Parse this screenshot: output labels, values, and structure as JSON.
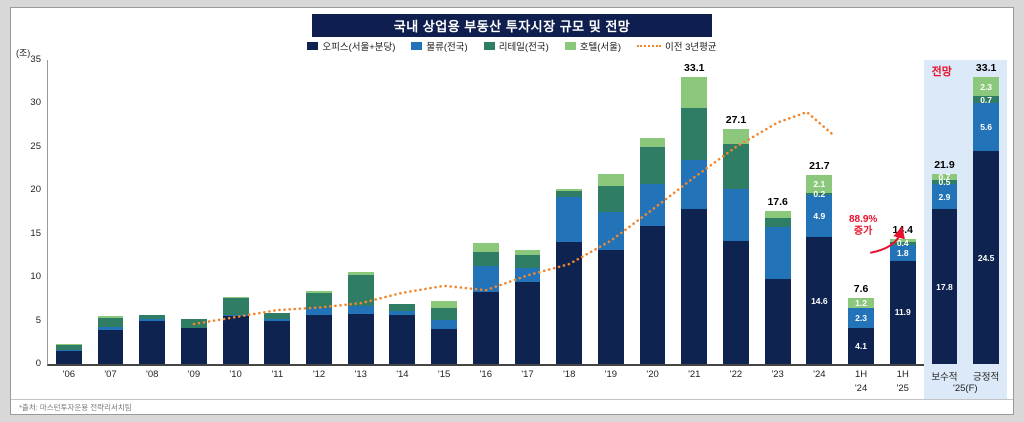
{
  "source": {
    "text": "*출처: 마스턴투자운용 전략리서치팀"
  },
  "chart_data": {
    "type": "stacked-bar+line",
    "title": "국내 상업용 부동산 투자시장 규모 및 전망",
    "unit": "(조)",
    "ylim": [
      0,
      35
    ],
    "yticks": [
      0,
      5,
      10,
      15,
      20,
      25,
      30,
      35
    ],
    "grid": "off",
    "legend_position": "top",
    "series": [
      {
        "key": "office",
        "name": "오피스(서울+분당)",
        "color": "#0f2350"
      },
      {
        "key": "logistics",
        "name": "물류(전국)",
        "color": "#2273b8"
      },
      {
        "key": "retail",
        "name": "리테일(전국)",
        "color": "#2e7d64"
      },
      {
        "key": "hotel",
        "name": "호텔(서울)",
        "color": "#8cc87c"
      }
    ],
    "line_series": {
      "name": "이전 3년평균",
      "color": "#f2862d",
      "points": [
        [
          3,
          4.6
        ],
        [
          4,
          5.4
        ],
        [
          5,
          6.2
        ],
        [
          6,
          6.5
        ],
        [
          7,
          7.0
        ],
        [
          8,
          8.2
        ],
        [
          9,
          9.0
        ],
        [
          10,
          8.5
        ],
        [
          11,
          10.2
        ],
        [
          12,
          11.5
        ],
        [
          13,
          14.2
        ],
        [
          14,
          17.8
        ],
        [
          15,
          21.5
        ],
        [
          16,
          25.0
        ],
        [
          17,
          27.8
        ],
        [
          17.7,
          29.0
        ],
        [
          18.3,
          26.5
        ]
      ]
    },
    "bars": [
      {
        "label": "'06",
        "values": [
          1.5,
          0.1,
          0.6,
          0.1
        ],
        "value_labels": null,
        "total": null
      },
      {
        "label": "'07",
        "values": [
          3.9,
          0.4,
          1.0,
          0.2
        ],
        "value_labels": null,
        "total": null
      },
      {
        "label": "'08",
        "values": [
          5.0,
          0.2,
          0.5,
          0.0
        ],
        "value_labels": null,
        "total": null
      },
      {
        "label": "'09",
        "values": [
          4.2,
          0.0,
          1.0,
          0.0
        ],
        "value_labels": null,
        "total": null
      },
      {
        "label": "'10",
        "values": [
          5.5,
          0.1,
          2.0,
          0.1
        ],
        "value_labels": null,
        "total": null
      },
      {
        "label": "'11",
        "values": [
          4.9,
          0.3,
          0.7,
          0.0
        ],
        "value_labels": null,
        "total": null
      },
      {
        "label": "'12",
        "values": [
          5.6,
          0.8,
          1.8,
          0.2
        ],
        "value_labels": null,
        "total": null
      },
      {
        "label": "'13",
        "values": [
          5.8,
          0.9,
          3.5,
          0.4
        ],
        "value_labels": null,
        "total": null
      },
      {
        "label": "'14",
        "values": [
          5.6,
          0.5,
          0.8,
          0.0
        ],
        "value_labels": null,
        "total": null
      },
      {
        "label": "'15",
        "values": [
          4.0,
          1.1,
          1.3,
          0.8
        ],
        "value_labels": null,
        "total": null
      },
      {
        "label": "'16",
        "values": [
          8.3,
          3.0,
          1.6,
          1.0
        ],
        "value_labels": null,
        "total": null
      },
      {
        "label": "'17",
        "values": [
          9.4,
          1.6,
          1.6,
          0.5
        ],
        "value_labels": null,
        "total": null
      },
      {
        "label": "'18",
        "values": [
          14.0,
          5.2,
          0.7,
          0.2
        ],
        "value_labels": null,
        "total": null
      },
      {
        "label": "'19",
        "values": [
          13.1,
          4.4,
          3.0,
          1.4
        ],
        "value_labels": null,
        "total": null
      },
      {
        "label": "'20",
        "values": [
          15.9,
          4.8,
          4.3,
          1.0
        ],
        "value_labels": null,
        "total": null
      },
      {
        "label": "'21",
        "values": [
          17.8,
          5.7,
          6.0,
          3.6
        ],
        "value_labels": null,
        "total": "33.1"
      },
      {
        "label": "'22",
        "values": [
          14.2,
          6.0,
          5.1,
          1.8
        ],
        "value_labels": null,
        "total": "27.1"
      },
      {
        "label": "'23",
        "values": [
          9.8,
          6.0,
          1.0,
          0.8
        ],
        "value_labels": null,
        "total": "17.6"
      },
      {
        "label": "'24",
        "values": [
          14.6,
          4.9,
          0.2,
          2.1
        ],
        "value_labels": [
          "14.6",
          "4.9",
          "0.2",
          "2.1"
        ],
        "total": "21.7"
      },
      {
        "label": "1H",
        "sublabel": "'24",
        "values": [
          4.1,
          2.3,
          0.0,
          1.2
        ],
        "value_labels": [
          "4.1",
          "2.3",
          null,
          "1.2"
        ],
        "total": "7.6"
      },
      {
        "label": "1H",
        "sublabel": "'25",
        "values": [
          11.9,
          1.8,
          0.4,
          0.3
        ],
        "value_labels": [
          "11.9",
          "1.8",
          "0.4",
          null
        ],
        "total": "14.4"
      },
      {
        "label": "보수적",
        "values": [
          17.8,
          2.9,
          0.5,
          0.7
        ],
        "value_labels": [
          "17.8",
          "2.9",
          "0.5",
          "0.7"
        ],
        "total": "21.9"
      },
      {
        "label": "긍정적",
        "values": [
          24.5,
          5.6,
          0.7,
          2.3
        ],
        "value_labels": [
          "24.5",
          "5.6",
          "0.7",
          "2.3"
        ],
        "total": "33.1"
      }
    ],
    "forecast": {
      "label": "전망",
      "start_index": 21,
      "bg_color": "#dbe9f8",
      "group_label": "'25(F)"
    },
    "annotation": {
      "lines": [
        "88.9%",
        "증가"
      ],
      "color": "#e8112d"
    }
  }
}
